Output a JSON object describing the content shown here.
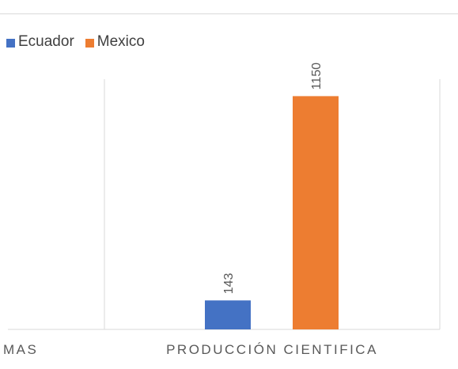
{
  "legend": {
    "items": [
      {
        "label": "Ecuador",
        "color": "#4472C4"
      },
      {
        "label": "Mexico",
        "color": "#ED7D31"
      }
    ]
  },
  "chart_data": {
    "type": "bar",
    "categories": [
      "...MAS",
      "PRODUCCIÓN CIENTIFICA"
    ],
    "category_labels_visible": [
      "MAS",
      "PRODUCCIÓN CIENTIFICA"
    ],
    "series": [
      {
        "name": "Ecuador",
        "color": "#4472C4",
        "values": [
          null,
          143
        ]
      },
      {
        "name": "Mexico",
        "color": "#ED7D31",
        "values": [
          null,
          1150
        ]
      }
    ],
    "data_labels": [
      "143",
      "1150"
    ],
    "ylim": [
      0,
      1460
    ],
    "grid": false,
    "legend_position": "top-left"
  }
}
